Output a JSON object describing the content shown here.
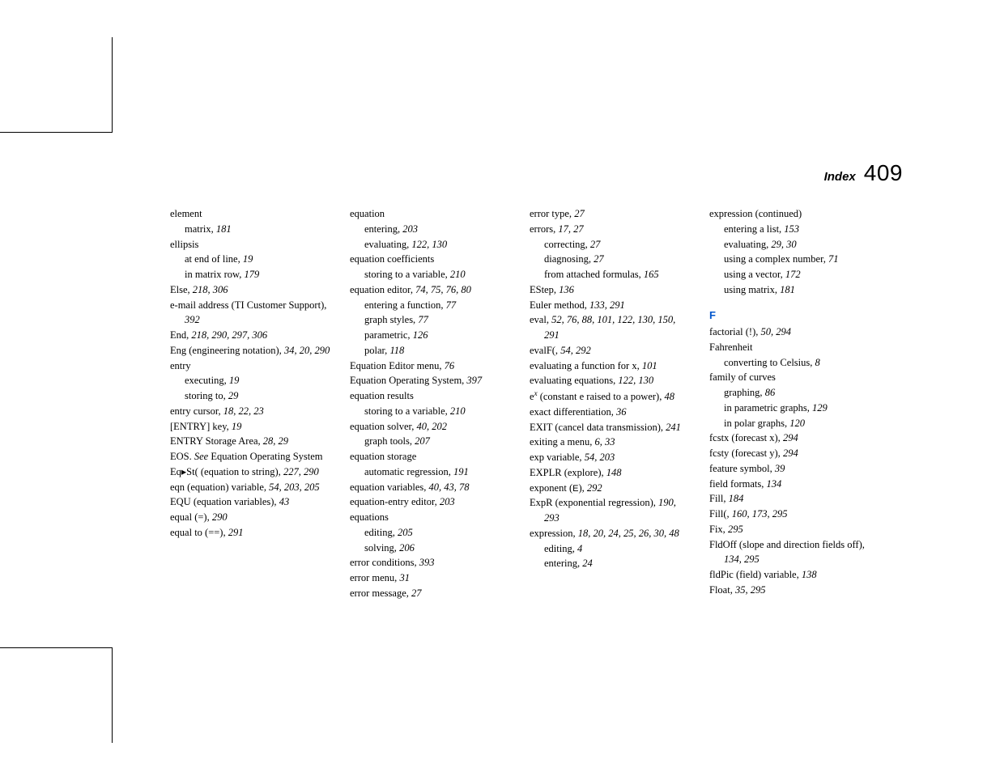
{
  "header": {
    "label": "Index",
    "page_number": "409"
  },
  "section_letter": "F",
  "columns": [
    [
      {
        "t": "element"
      },
      {
        "t": "matrix, ",
        "p": "181",
        "sub": true
      },
      {
        "t": "ellipsis"
      },
      {
        "t": "at end of line, ",
        "p": "19",
        "sub": true
      },
      {
        "t": "in matrix row, ",
        "p": "179",
        "sub": true
      },
      {
        "t": "Else, ",
        "p": "218, 306"
      },
      {
        "t": "e-mail address (TI Customer Support), ",
        "p": "392",
        "wrap": true
      },
      {
        "t": "End, ",
        "p": "218, 290, 297, 306"
      },
      {
        "t": "Eng (engineering notation), ",
        "p": "34, 20, 290",
        "wrap": true
      },
      {
        "t": "entry"
      },
      {
        "t": "executing, ",
        "p": "19",
        "sub": true
      },
      {
        "t": "storing to, ",
        "p": "29",
        "sub": true
      },
      {
        "t": "entry cursor, ",
        "p": "18, 22, 23"
      },
      {
        "t": "[ENTRY] key, ",
        "p": "19"
      },
      {
        "t": "ENTRY Storage Area, ",
        "p": "28, 29"
      },
      {
        "t_html": "EOS. <em class='see'>See</em> Equation Operating System",
        "wrap": true
      },
      {
        "t": "Eq▸St( (equation to string), ",
        "p": "227, 290",
        "wrap": true
      },
      {
        "t": "eqn (equation) variable, ",
        "p": "54, 203, 205",
        "wrap": true
      },
      {
        "t": "EQU (equation variables), ",
        "p": "43"
      },
      {
        "t": "equal (=), ",
        "p": "290"
      },
      {
        "t": "equal to (==), ",
        "p": "291"
      }
    ],
    [
      {
        "t": "equation"
      },
      {
        "t": "entering, ",
        "p": "203",
        "sub": true
      },
      {
        "t": "evaluating, ",
        "p": "122, 130",
        "sub": true
      },
      {
        "t": "equation coefficients"
      },
      {
        "t": "storing to a variable, ",
        "p": "210",
        "sub": true
      },
      {
        "t": "equation editor, ",
        "p": "74, 75, 76, 80"
      },
      {
        "t": "entering a function, ",
        "p": "77",
        "sub": true
      },
      {
        "t": "graph styles, ",
        "p": "77",
        "sub": true
      },
      {
        "t": "parametric, ",
        "p": "126",
        "sub": true
      },
      {
        "t": "polar, ",
        "p": "118",
        "sub": true
      },
      {
        "t": "Equation Editor menu, ",
        "p": "76"
      },
      {
        "t": "Equation Operating System, ",
        "p": "397",
        "wrap": true
      },
      {
        "t": "equation results"
      },
      {
        "t": "storing to a variable, ",
        "p": "210",
        "sub": true
      },
      {
        "t": "equation solver, ",
        "p": "40, 202"
      },
      {
        "t": "graph tools, ",
        "p": "207",
        "sub": true
      },
      {
        "t": "equation storage"
      },
      {
        "t": "automatic regression, ",
        "p": "191",
        "sub": true
      },
      {
        "t": "equation variables, ",
        "p": "40, 43, 78"
      },
      {
        "t": "equation-entry editor, ",
        "p": "203"
      },
      {
        "t": "equations"
      },
      {
        "t": "editing, ",
        "p": "205",
        "sub": true
      },
      {
        "t": "solving, ",
        "p": "206",
        "sub": true
      },
      {
        "t": "error conditions, ",
        "p": "393"
      },
      {
        "t": "error menu, ",
        "p": "31"
      },
      {
        "t": "error message, ",
        "p": "27"
      }
    ],
    [
      {
        "t": "error type, ",
        "p": "27"
      },
      {
        "t": "errors, ",
        "p": "17, 27"
      },
      {
        "t": "correcting, ",
        "p": "27",
        "sub": true
      },
      {
        "t": "diagnosing, ",
        "p": "27",
        "sub": true
      },
      {
        "t": "from attached formulas, ",
        "p": "165",
        "sub": true
      },
      {
        "t": "EStep, ",
        "p": "136"
      },
      {
        "t": "Euler method, ",
        "p": "133, 291"
      },
      {
        "t": "eval, ",
        "p": "52, 76, 88, 101, 122, 130, 150, 291",
        "wrap": true
      },
      {
        "t": "evalF(, ",
        "p": "54, 292"
      },
      {
        "t": "evaluating a function for x, ",
        "p": "101"
      },
      {
        "t": "evaluating equations, ",
        "p": "122, 130"
      },
      {
        "t_html": "e<sup style='font-style:italic;font-size:9px'>x</sup> (constant e raised to a power), ",
        "p": "48",
        "wrap": true
      },
      {
        "t": "exact differentiation, ",
        "p": "36"
      },
      {
        "t": "EXIT (cancel data transmission), ",
        "p": "241",
        "wrap": true
      },
      {
        "t": "exiting a menu, ",
        "p": "6, 33"
      },
      {
        "t": "exp variable, ",
        "p": "54,  203"
      },
      {
        "t": "EXPLR (explore), ",
        "p": "148"
      },
      {
        "t_html": "exponent (<span style='font-family:Arial,sans-serif;font-size:11px'>E</span>), ",
        "p": "292"
      },
      {
        "t": "ExpR (exponential regression), ",
        "p": "190, 293",
        "wrap": true
      },
      {
        "t": "expression, ",
        "p": "18, 20, 24, 25, 26, 30, 48",
        "wrap": true
      },
      {
        "t": "editing, ",
        "p": "4",
        "sub": true
      },
      {
        "t": "entering, ",
        "p": "24",
        "sub": true
      }
    ],
    [
      {
        "t": "expression (continued)"
      },
      {
        "t": "entering a list, ",
        "p": "153",
        "sub": true
      },
      {
        "t": "evaluating, ",
        "p": "29, 30",
        "sub": true
      },
      {
        "t": "using a complex number, ",
        "p": "71",
        "sub": true
      },
      {
        "t": "using a vector, ",
        "p": "172",
        "sub": true
      },
      {
        "t": "using matrix, ",
        "p": "181",
        "sub": true
      },
      {
        "section": true
      },
      {
        "t": "factorial (!), ",
        "p": "50, 294"
      },
      {
        "t": "Fahrenheit"
      },
      {
        "t": "converting to Celsius, ",
        "p": "8",
        "sub": true
      },
      {
        "t": "family of curves"
      },
      {
        "t": "graphing, ",
        "p": "86",
        "sub": true
      },
      {
        "t": "in parametric graphs, ",
        "p": "129",
        "sub": true
      },
      {
        "t": "in polar graphs, ",
        "p": "120",
        "sub": true
      },
      {
        "t": "fcstx (forecast x), ",
        "p": "294"
      },
      {
        "t": "fcsty (forecast y), ",
        "p": "294"
      },
      {
        "t": "feature symbol, ",
        "p": "39"
      },
      {
        "t": "field formats, ",
        "p": "134"
      },
      {
        "t": "Fill, ",
        "p": "184"
      },
      {
        "t": "Fill(, ",
        "p": "160, 173, 295"
      },
      {
        "t": "Fix, ",
        "p": "295"
      },
      {
        "t": "FldOff (slope and direction fields off), ",
        "p": "134, 295",
        "wrap": true
      },
      {
        "t": "fldPic (field) variable, ",
        "p": "138"
      },
      {
        "t": "Float, ",
        "p": "35, 295"
      }
    ]
  ]
}
